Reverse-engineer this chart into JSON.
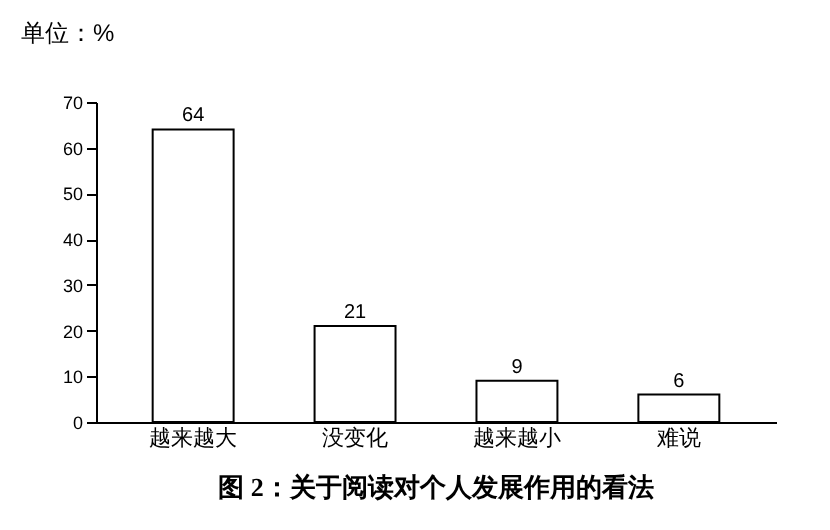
{
  "chart_data": {
    "type": "bar",
    "title": "图 2：关于阅读对个人发展作用的看法",
    "ylabel": "单位：%",
    "categories": [
      "越来越大",
      "没变化",
      "越来越小",
      "难说"
    ],
    "values": [
      64,
      21,
      9,
      6
    ],
    "color": "#ffffff",
    "ylim": [
      0,
      70
    ],
    "yticks": [
      0,
      10,
      20,
      30,
      40,
      50,
      60,
      70
    ],
    "grid": false,
    "data_labels": true
  }
}
